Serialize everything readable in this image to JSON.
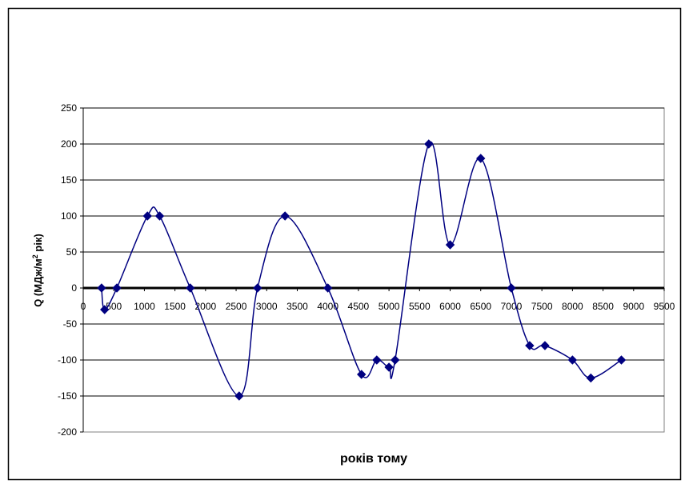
{
  "chart_data": {
    "type": "line",
    "title": "",
    "xlabel": "років тому",
    "ylabel": "Q (МДж/м² рік)",
    "ylabel_parts": {
      "main": "Q (МДж/м",
      "sup": "2",
      "tail": " рік)"
    },
    "xlim": [
      0,
      9500
    ],
    "ylim": [
      -200,
      250
    ],
    "x_ticks": [
      0,
      500,
      1000,
      1500,
      2000,
      2500,
      3000,
      3500,
      4000,
      4500,
      5000,
      5500,
      6000,
      6500,
      7000,
      7500,
      8000,
      8500,
      9000,
      9500
    ],
    "x_tick_labels": [
      "0",
      "500",
      "1000",
      "1500",
      "2000",
      "2500",
      "3000",
      "3500",
      "4000",
      "4500",
      "5000",
      "5500",
      "6000",
      "6500",
      "7000",
      "7500",
      "8000",
      "8500",
      "9000",
      "9500"
    ],
    "y_ticks": [
      250,
      200,
      150,
      100,
      50,
      0,
      -50,
      -100,
      -150,
      -200
    ],
    "y_tick_labels": [
      "250",
      "200",
      "150",
      "100",
      "50",
      "0",
      "-50",
      "-100",
      "-150",
      "-200"
    ],
    "grid": "horizontal",
    "legend": "none",
    "series": [
      {
        "color": "#000080",
        "marker": "diamond",
        "x": [
          300,
          350,
          550,
          1050,
          1250,
          1750,
          2550,
          2850,
          3300,
          4000,
          4550,
          4800,
          5000,
          5100,
          5650,
          6000,
          6500,
          7000,
          7300,
          7550,
          8000,
          8300,
          8800
        ],
        "y": [
          0,
          -30,
          0,
          100,
          100,
          0,
          -150,
          0,
          100,
          0,
          -120,
          -100,
          -110,
          -100,
          200,
          60,
          180,
          0,
          -80,
          -80,
          -100,
          -125,
          -100
        ]
      }
    ]
  }
}
